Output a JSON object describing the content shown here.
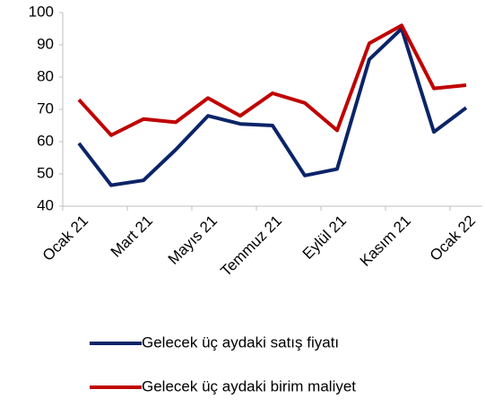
{
  "chart_data": {
    "type": "line",
    "categories": [
      "Ocak 21",
      null,
      "Mart 21",
      null,
      "Mayıs 21",
      null,
      "Temmuz 21",
      null,
      "Eylül 21",
      null,
      "Kasım 21",
      null,
      "Ocak 22"
    ],
    "series": [
      {
        "name": "Gelecek üç aydaki satış fiyatı",
        "color": "#0b2468",
        "values": [
          59.5,
          46.5,
          48,
          57.5,
          68,
          65.5,
          65,
          49.5,
          51.5,
          85.5,
          95,
          63,
          70.5
        ]
      },
      {
        "name": "Gelecek üç aydaki birim maliyet",
        "color": "#c00000",
        "values": [
          73,
          62,
          67,
          66,
          73.5,
          68,
          75,
          72,
          63.5,
          90.5,
          96,
          76.5,
          77.5
        ]
      }
    ],
    "ylim": [
      40,
      100
    ],
    "yticks": [
      40,
      50,
      60,
      70,
      80,
      90,
      100
    ],
    "grid": false
  }
}
